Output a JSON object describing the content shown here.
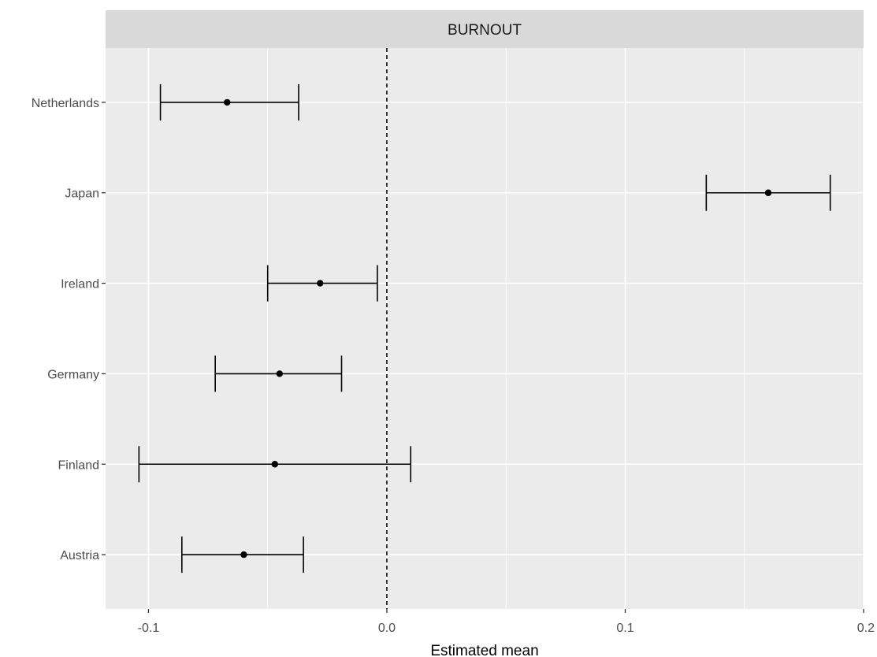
{
  "chart_data": {
    "type": "scatter",
    "facet_title": "BURNOUT",
    "xlabel": "Estimated mean",
    "ylabel": "",
    "xlim": [
      -0.118,
      0.2
    ],
    "x_ticks": [
      -0.1,
      0.0,
      0.1,
      0.2
    ],
    "x_tick_labels": [
      "-0.1",
      "0.0",
      "0.1",
      "0.2"
    ],
    "reference_line": {
      "x": 0.0,
      "style": "dashed"
    },
    "grid": true,
    "categories": [
      "Austria",
      "Finland",
      "Germany",
      "Ireland",
      "Japan",
      "Netherlands"
    ],
    "points": [
      {
        "label": "Austria",
        "estimate": -0.06,
        "lower": -0.086,
        "upper": -0.035
      },
      {
        "label": "Finland",
        "estimate": -0.047,
        "lower": -0.104,
        "upper": 0.01
      },
      {
        "label": "Germany",
        "estimate": -0.045,
        "lower": -0.072,
        "upper": -0.019
      },
      {
        "label": "Ireland",
        "estimate": -0.028,
        "lower": -0.05,
        "upper": -0.004
      },
      {
        "label": "Japan",
        "estimate": 0.16,
        "lower": 0.134,
        "upper": 0.186
      },
      {
        "label": "Netherlands",
        "estimate": -0.067,
        "lower": -0.095,
        "upper": -0.037
      }
    ],
    "colors": {
      "panel": "#ebebeb",
      "strip": "#d9d9d9",
      "grid": "#ffffff",
      "marks": "#000000"
    }
  }
}
